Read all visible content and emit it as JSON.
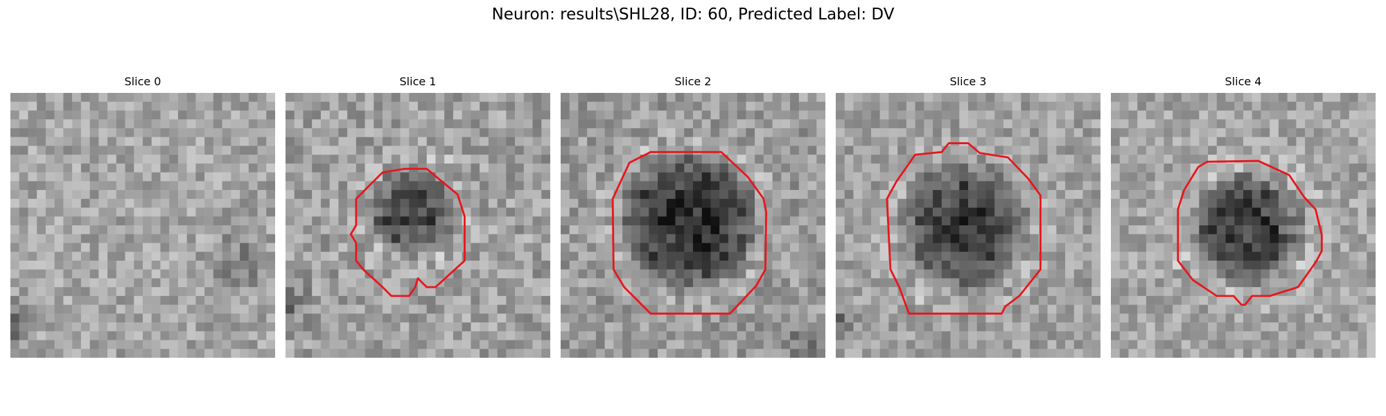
{
  "figure": {
    "title": "Neuron: results\\SHL28, ID: 60, Predicted Label: DV",
    "contour_color": "#e8161c"
  },
  "panels": [
    {
      "title": "Slice 0"
    },
    {
      "title": "Slice 1"
    },
    {
      "title": "Slice 2"
    },
    {
      "title": "Slice 3"
    },
    {
      "title": "Slice 4"
    }
  ]
}
